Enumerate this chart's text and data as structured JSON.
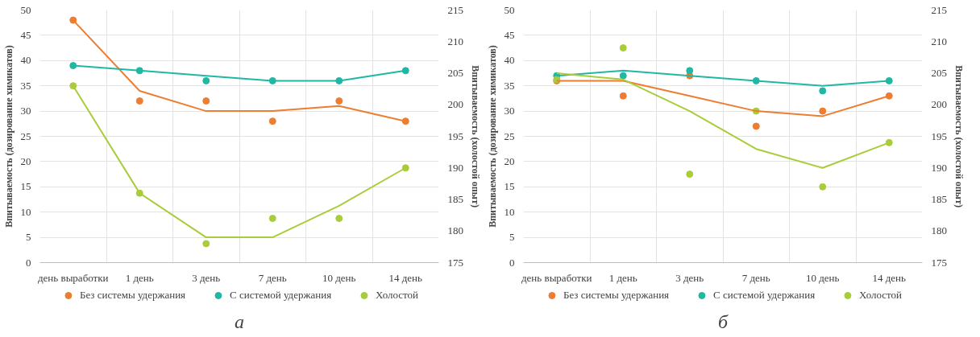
{
  "chart_data": [
    {
      "type": "scatter",
      "categories": [
        "день выработки",
        "1 день",
        "3 день",
        "7 день",
        "10 день",
        "14 день"
      ],
      "ylabel": "Впитываемость (дозирование химикатов)",
      "y2label": "Впитываемость (холостой опыт)",
      "ylim": [
        0,
        50
      ],
      "yticks": [
        0,
        5,
        10,
        15,
        20,
        25,
        30,
        35,
        40,
        45,
        50
      ],
      "y2lim": [
        175,
        215
      ],
      "y2ticks": [
        175,
        180,
        185,
        190,
        195,
        200,
        205,
        210,
        215
      ],
      "grid": true,
      "legend": "bottom",
      "marker": "circle",
      "annotations": [
        "а"
      ],
      "series": [
        {
          "name": "Без системы удержания",
          "color": "#ed7d31",
          "values": [
            48,
            32,
            32,
            28,
            32,
            28
          ]
        },
        {
          "name": "С системой удержания",
          "color": "#1fb8a4",
          "values": [
            39,
            38,
            36,
            36,
            36,
            38
          ]
        },
        {
          "name": "Холостой",
          "color": "#a9cd3a",
          "axis": "y2",
          "values": [
            203,
            186,
            178,
            182,
            182,
            190
          ]
        },
        {
          "type": "line",
          "marker": "none",
          "color": "#ed7d31",
          "values": [
            48,
            34,
            30,
            30,
            31,
            28
          ]
        },
        {
          "type": "line",
          "marker": "none",
          "color": "#1fb8a4",
          "values": [
            39,
            38,
            37,
            36,
            36,
            38
          ]
        },
        {
          "type": "line",
          "marker": "none",
          "color": "#a9cd3a",
          "axis": "y2",
          "values": [
            203,
            186,
            179,
            179,
            184,
            190
          ]
        }
      ]
    },
    {
      "type": "scatter",
      "categories": [
        "день выработки",
        "1 день",
        "3 день",
        "7 день",
        "10 день",
        "14 день"
      ],
      "ylabel": "Впитываемость (дозирование химикатов)",
      "y2label": "Впитываемость (холостой опыт)",
      "ylim": [
        0,
        50
      ],
      "yticks": [
        0,
        5,
        10,
        15,
        20,
        25,
        30,
        35,
        40,
        45,
        50
      ],
      "y2lim": [
        175,
        215
      ],
      "y2ticks": [
        175,
        180,
        185,
        190,
        195,
        200,
        205,
        210,
        215
      ],
      "grid": true,
      "legend": "bottom",
      "marker": "circle",
      "annotations": [
        "б"
      ],
      "series": [
        {
          "name": "Без системы удержания",
          "color": "#ed7d31",
          "values": [
            36,
            33,
            37,
            27,
            30,
            33
          ]
        },
        {
          "name": "С системой удержания",
          "color": "#1fb8a4",
          "values": [
            37,
            37,
            38,
            36,
            34,
            36
          ]
        },
        {
          "name": "Холостой",
          "color": "#a9cd3a",
          "axis": "y2",
          "values": [
            204,
            209,
            189,
            199,
            187,
            194
          ]
        },
        {
          "type": "line",
          "marker": "none",
          "color": "#ed7d31",
          "values": [
            36,
            36,
            33,
            30,
            29,
            33
          ]
        },
        {
          "type": "line",
          "marker": "none",
          "color": "#1fb8a4",
          "values": [
            37,
            38,
            37,
            36,
            35,
            36
          ]
        },
        {
          "type": "line",
          "marker": "none",
          "color": "#a9cd3a",
          "axis": "y2",
          "values": [
            205,
            204,
            199,
            193,
            190,
            194
          ]
        }
      ]
    }
  ]
}
